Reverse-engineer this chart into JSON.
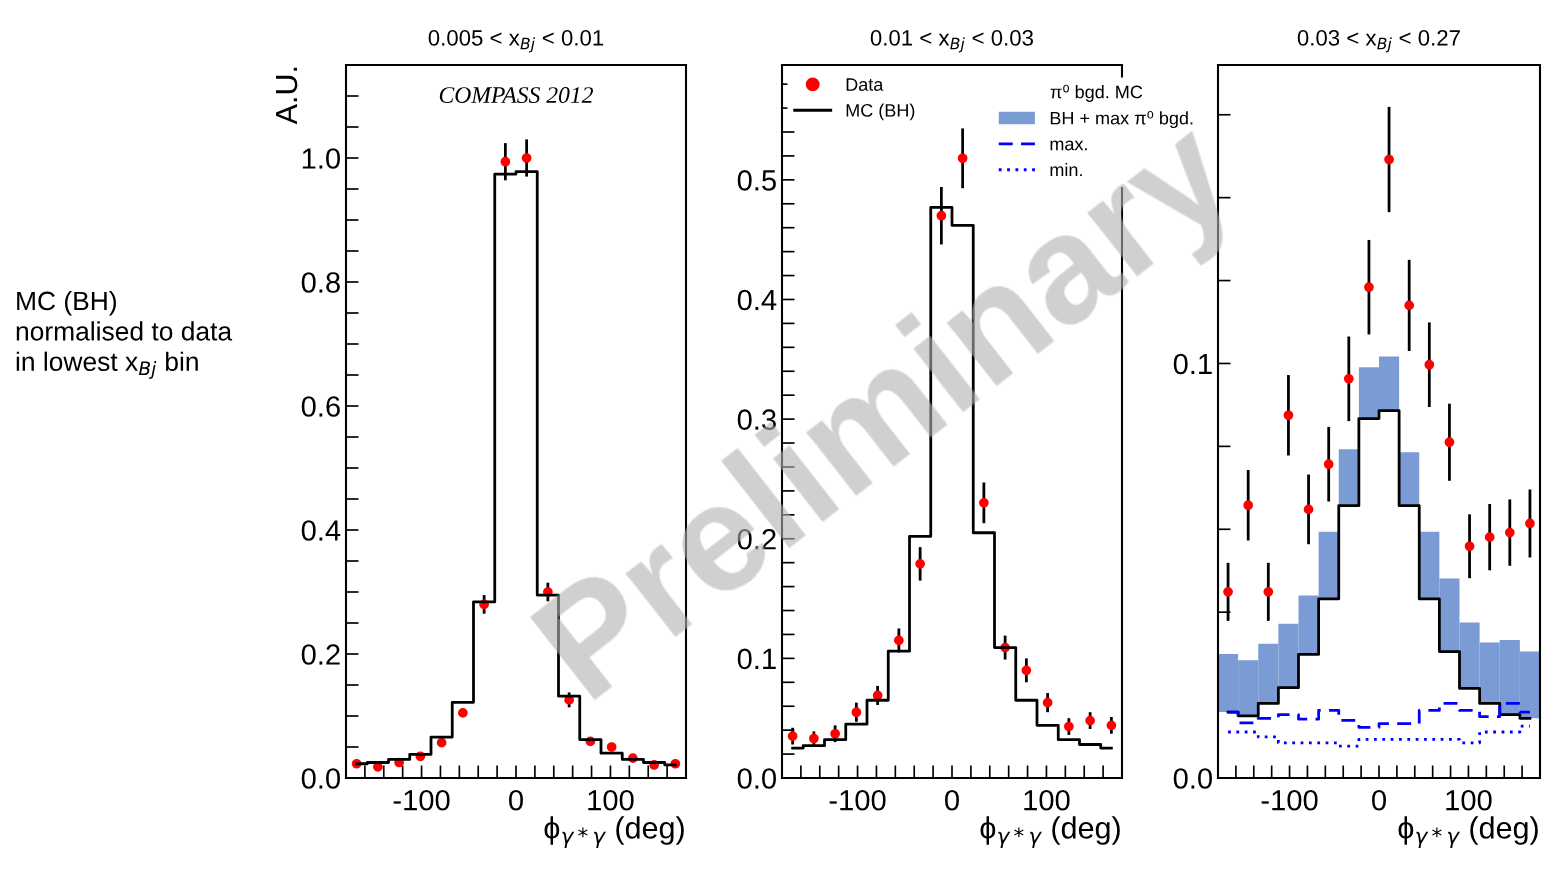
{
  "chart_data": [
    {
      "type": "step",
      "title": "0.005 < x$_{Bj}$ < 0.01",
      "xlabel": "ϕ$_{γ*γ}$ (deg)",
      "ylabel": "A.U.",
      "x": [
        -168.75,
        -146.25,
        -123.75,
        -101.25,
        -78.75,
        -56.25,
        -33.75,
        -11.25,
        11.25,
        33.75,
        56.25,
        78.75,
        101.25,
        123.75,
        146.25,
        168.75
      ],
      "xlim": [
        -180,
        180
      ],
      "xticks": [
        {
          "value": -160,
          "label": null
        },
        {
          "value": -140,
          "label": null
        },
        {
          "value": -120,
          "label": null
        },
        -100,
        {
          "value": -80,
          "label": null
        },
        {
          "value": -60,
          "label": null
        },
        {
          "value": -40,
          "label": null
        },
        {
          "value": -20,
          "label": null
        },
        0,
        {
          "value": 20,
          "label": null
        },
        {
          "value": 40,
          "label": null
        },
        {
          "value": 60,
          "label": null
        },
        {
          "value": 80,
          "label": null
        },
        100,
        {
          "value": 120,
          "label": null
        },
        {
          "value": 140,
          "label": null
        },
        {
          "value": 160,
          "label": null
        }
      ],
      "ylim": [
        0,
        1.15
      ],
      "yticks": [
        "0.0",
        {
          "value": 0.05,
          "label": null
        },
        {
          "value": 0.1,
          "label": null
        },
        {
          "value": 0.15,
          "label": null
        },
        {
          "value": 0.2,
          "label": "0.2"
        },
        {
          "value": 0.25,
          "label": null
        },
        {
          "value": 0.3,
          "label": null
        },
        {
          "value": 0.35,
          "label": null
        },
        {
          "value": 0.4,
          "label": "0.4"
        },
        {
          "value": 0.45,
          "label": null
        },
        {
          "value": 0.5,
          "label": null
        },
        {
          "value": 0.55,
          "label": null
        },
        {
          "value": 0.6,
          "label": "0.6"
        },
        {
          "value": 0.65,
          "label": null
        },
        {
          "value": 0.7,
          "label": null
        },
        {
          "value": 0.75,
          "label": null
        },
        {
          "value": 0.8,
          "label": "0.8"
        },
        {
          "value": 0.85,
          "label": null
        },
        {
          "value": 0.9,
          "label": null
        },
        {
          "value": 0.95,
          "label": null
        },
        {
          "value": 1.0,
          "label": "1.0"
        },
        {
          "value": 1.05,
          "label": null
        },
        {
          "value": 1.1,
          "label": null
        }
      ],
      "annotations": [
        "COMPASS 2012",
        "MC (BH)\nnormalised to data\nin lowest x$_{Bj}$ bin"
      ],
      "series": [
        {
          "color": "#000000",
          "line_style": "solid",
          "values": [
            0.023,
            0.025,
            0.03,
            0.038,
            0.066,
            0.122,
            0.284,
            0.974,
            0.978,
            0.295,
            0.132,
            0.062,
            0.04,
            0.03,
            0.025,
            0.021
          ]
        },
        {
          "type": "scatter",
          "color": "#ff0000",
          "marker": "circle",
          "values": [
            0.023,
            0.018,
            0.025,
            0.035,
            0.057,
            0.105,
            0.28,
            0.994,
            1.0,
            0.3,
            0.126,
            0.059,
            0.05,
            0.032,
            0.021,
            0.023
          ],
          "errors": [
            null,
            null,
            null,
            null,
            null,
            null,
            0.015,
            0.03,
            0.03,
            0.015,
            0.012,
            null,
            null,
            null,
            null,
            null
          ]
        }
      ]
    },
    {
      "type": "step",
      "title": "0.01 < x$_{Bj}$ < 0.03",
      "xlabel": "ϕ$_{γ*γ}$ (deg)",
      "legend": "top left",
      "x": [
        -168.75,
        -146.25,
        -123.75,
        -101.25,
        -78.75,
        -56.25,
        -33.75,
        -11.25,
        11.25,
        33.75,
        56.25,
        78.75,
        101.25,
        123.75,
        146.25,
        168.75
      ],
      "xlim": [
        -180,
        180
      ],
      "xticks": [
        {
          "value": -160,
          "label": null
        },
        {
          "value": -140,
          "label": null
        },
        {
          "value": -120,
          "label": null
        },
        -100,
        {
          "value": -80,
          "label": null
        },
        {
          "value": -60,
          "label": null
        },
        {
          "value": -40,
          "label": null
        },
        {
          "value": -20,
          "label": null
        },
        0,
        {
          "value": 20,
          "label": null
        },
        {
          "value": 40,
          "label": null
        },
        {
          "value": 60,
          "label": null
        },
        {
          "value": 80,
          "label": null
        },
        100,
        {
          "value": 120,
          "label": null
        },
        {
          "value": 140,
          "label": null
        },
        {
          "value": 160,
          "label": null
        }
      ],
      "ylim": [
        0,
        0.596
      ],
      "yticks": [
        {
          "value": 0,
          "label": "0.0"
        },
        {
          "value": 0.02,
          "label": null
        },
        {
          "value": 0.04,
          "label": null
        },
        {
          "value": 0.06,
          "label": null
        },
        {
          "value": 0.08,
          "label": null
        },
        0.1,
        {
          "value": 0.12,
          "label": null
        },
        {
          "value": 0.14,
          "label": null
        },
        {
          "value": 0.16,
          "label": null
        },
        {
          "value": 0.18,
          "label": null
        },
        0.2,
        {
          "value": 0.22,
          "label": null
        },
        {
          "value": 0.24,
          "label": null
        },
        {
          "value": 0.26,
          "label": null
        },
        {
          "value": 0.28,
          "label": null
        },
        0.3,
        {
          "value": 0.32,
          "label": null
        },
        {
          "value": 0.34,
          "label": null
        },
        {
          "value": 0.36,
          "label": null
        },
        {
          "value": 0.38,
          "label": null
        },
        0.4,
        {
          "value": 0.42,
          "label": null
        },
        {
          "value": 0.44,
          "label": null
        },
        {
          "value": 0.46,
          "label": null
        },
        {
          "value": 0.48,
          "label": null
        },
        0.5,
        {
          "value": 0.52,
          "label": null
        },
        {
          "value": 0.54,
          "label": null
        },
        {
          "value": 0.56,
          "label": null
        },
        {
          "value": 0.58,
          "label": null
        }
      ],
      "annotations": [
        "Preliminary"
      ],
      "series": [
        {
          "type": "scatter",
          "name": "Data",
          "color": "#ff0000",
          "marker": "circle",
          "values": [
            0.035,
            0.033,
            0.037,
            0.055,
            0.069,
            0.115,
            0.179,
            0.47,
            0.518,
            0.23,
            0.109,
            0.09,
            0.063,
            0.043,
            0.048,
            0.044
          ],
          "errors": [
            0.007,
            0.006,
            0.007,
            0.008,
            0.008,
            0.01,
            0.014,
            0.024,
            0.025,
            0.017,
            0.01,
            0.01,
            0.008,
            0.007,
            0.007,
            0.007
          ]
        },
        {
          "name": "MC (BH)",
          "color": "#000000",
          "line_style": "solid",
          "values": [
            0.025,
            0.027,
            0.032,
            0.045,
            0.065,
            0.106,
            0.202,
            0.477,
            0.462,
            0.205,
            0.109,
            0.065,
            0.044,
            0.032,
            0.028,
            0.025
          ]
        }
      ]
    },
    {
      "type": "step",
      "title": "0.03 < x$_{Bj}$ < 0.27",
      "xlabel": "ϕ$_{γ*γ}$ (deg)",
      "legend": "left",
      "legend_title": "π⁰ bgd. MC",
      "x": [
        -168.75,
        -146.25,
        -123.75,
        -101.25,
        -78.75,
        -56.25,
        -33.75,
        -11.25,
        11.25,
        33.75,
        56.25,
        78.75,
        101.25,
        123.75,
        146.25,
        168.75
      ],
      "xlim": [
        -180,
        180
      ],
      "xticks": [
        {
          "value": -160,
          "label": null
        },
        {
          "value": -140,
          "label": null
        },
        {
          "value": -120,
          "label": null
        },
        -100,
        {
          "value": -80,
          "label": null
        },
        {
          "value": -60,
          "label": null
        },
        {
          "value": -40,
          "label": null
        },
        {
          "value": -20,
          "label": null
        },
        0,
        {
          "value": 20,
          "label": null
        },
        {
          "value": 40,
          "label": null
        },
        {
          "value": 60,
          "label": null
        },
        {
          "value": 80,
          "label": null
        },
        100,
        {
          "value": 120,
          "label": null
        },
        {
          "value": 140,
          "label": null
        },
        {
          "value": 160,
          "label": null
        }
      ],
      "ylim": [
        0,
        0.172
      ],
      "yticks": [
        {
          "value": 0,
          "label": "0.0"
        },
        {
          "value": 0.02,
          "label": null
        },
        {
          "value": 0.04,
          "label": null
        },
        {
          "value": 0.06,
          "label": null
        },
        {
          "value": 0.08,
          "label": null
        },
        0.1,
        {
          "value": 0.12,
          "label": null
        },
        {
          "value": 0.14,
          "label": null
        },
        {
          "value": 0.16,
          "label": null
        }
      ],
      "series": [
        {
          "type": "bar",
          "name": "BH + max π⁰ bgd.",
          "color": "#7b9bd4",
          "base": [
            0.0159,
            0.015,
            0.018,
            0.0218,
            0.0298,
            0.0432,
            0.0657,
            0.0867,
            0.0886,
            0.0657,
            0.0432,
            0.0305,
            0.0216,
            0.018,
            0.0153,
            0.0144
          ],
          "values": [
            0.014,
            0.0134,
            0.0144,
            0.0154,
            0.0142,
            0.0162,
            0.0136,
            0.0124,
            0.0131,
            0.0129,
            0.0162,
            0.0176,
            0.0159,
            0.0147,
            0.018,
            0.0161
          ]
        },
        {
          "color": "#000000",
          "line_style": "solid",
          "values": [
            0.0159,
            0.015,
            0.018,
            0.0218,
            0.0298,
            0.0432,
            0.0657,
            0.0867,
            0.0886,
            0.0657,
            0.0432,
            0.0305,
            0.0216,
            0.018,
            0.0153,
            0.0144
          ]
        },
        {
          "name": "max.",
          "color": "#0000ff",
          "line_style": "dashed",
          "values": [
            0.0159,
            0.0133,
            0.0144,
            0.0153,
            0.0142,
            0.0163,
            0.0139,
            0.0122,
            0.0131,
            0.0131,
            0.0163,
            0.018,
            0.0163,
            0.0148,
            0.018,
            0.0159
          ]
        },
        {
          "name": "min.",
          "color": "#0000ff",
          "line_style": "dotted",
          "values": [
            0.0111,
            0.0111,
            0.0099,
            0.0085,
            0.0085,
            0.0085,
            0.0077,
            0.0093,
            0.0093,
            0.0093,
            0.0093,
            0.0093,
            0.0085,
            0.0111,
            0.0111,
            0.0125
          ]
        },
        {
          "type": "scatter",
          "color": "#ff0000",
          "marker": "circle",
          "values": [
            0.0449,
            0.0658,
            0.0449,
            0.0875,
            0.0648,
            0.0757,
            0.0963,
            0.1184,
            0.1492,
            0.114,
            0.0997,
            0.081,
            0.0559,
            0.0581,
            0.0592,
            0.0614
          ],
          "errors": [
            0.007,
            0.0085,
            0.007,
            0.0097,
            0.0084,
            0.009,
            0.0102,
            0.0114,
            0.0127,
            0.011,
            0.0102,
            0.0093,
            0.0077,
            0.008,
            0.008,
            0.0082
          ]
        }
      ]
    }
  ]
}
